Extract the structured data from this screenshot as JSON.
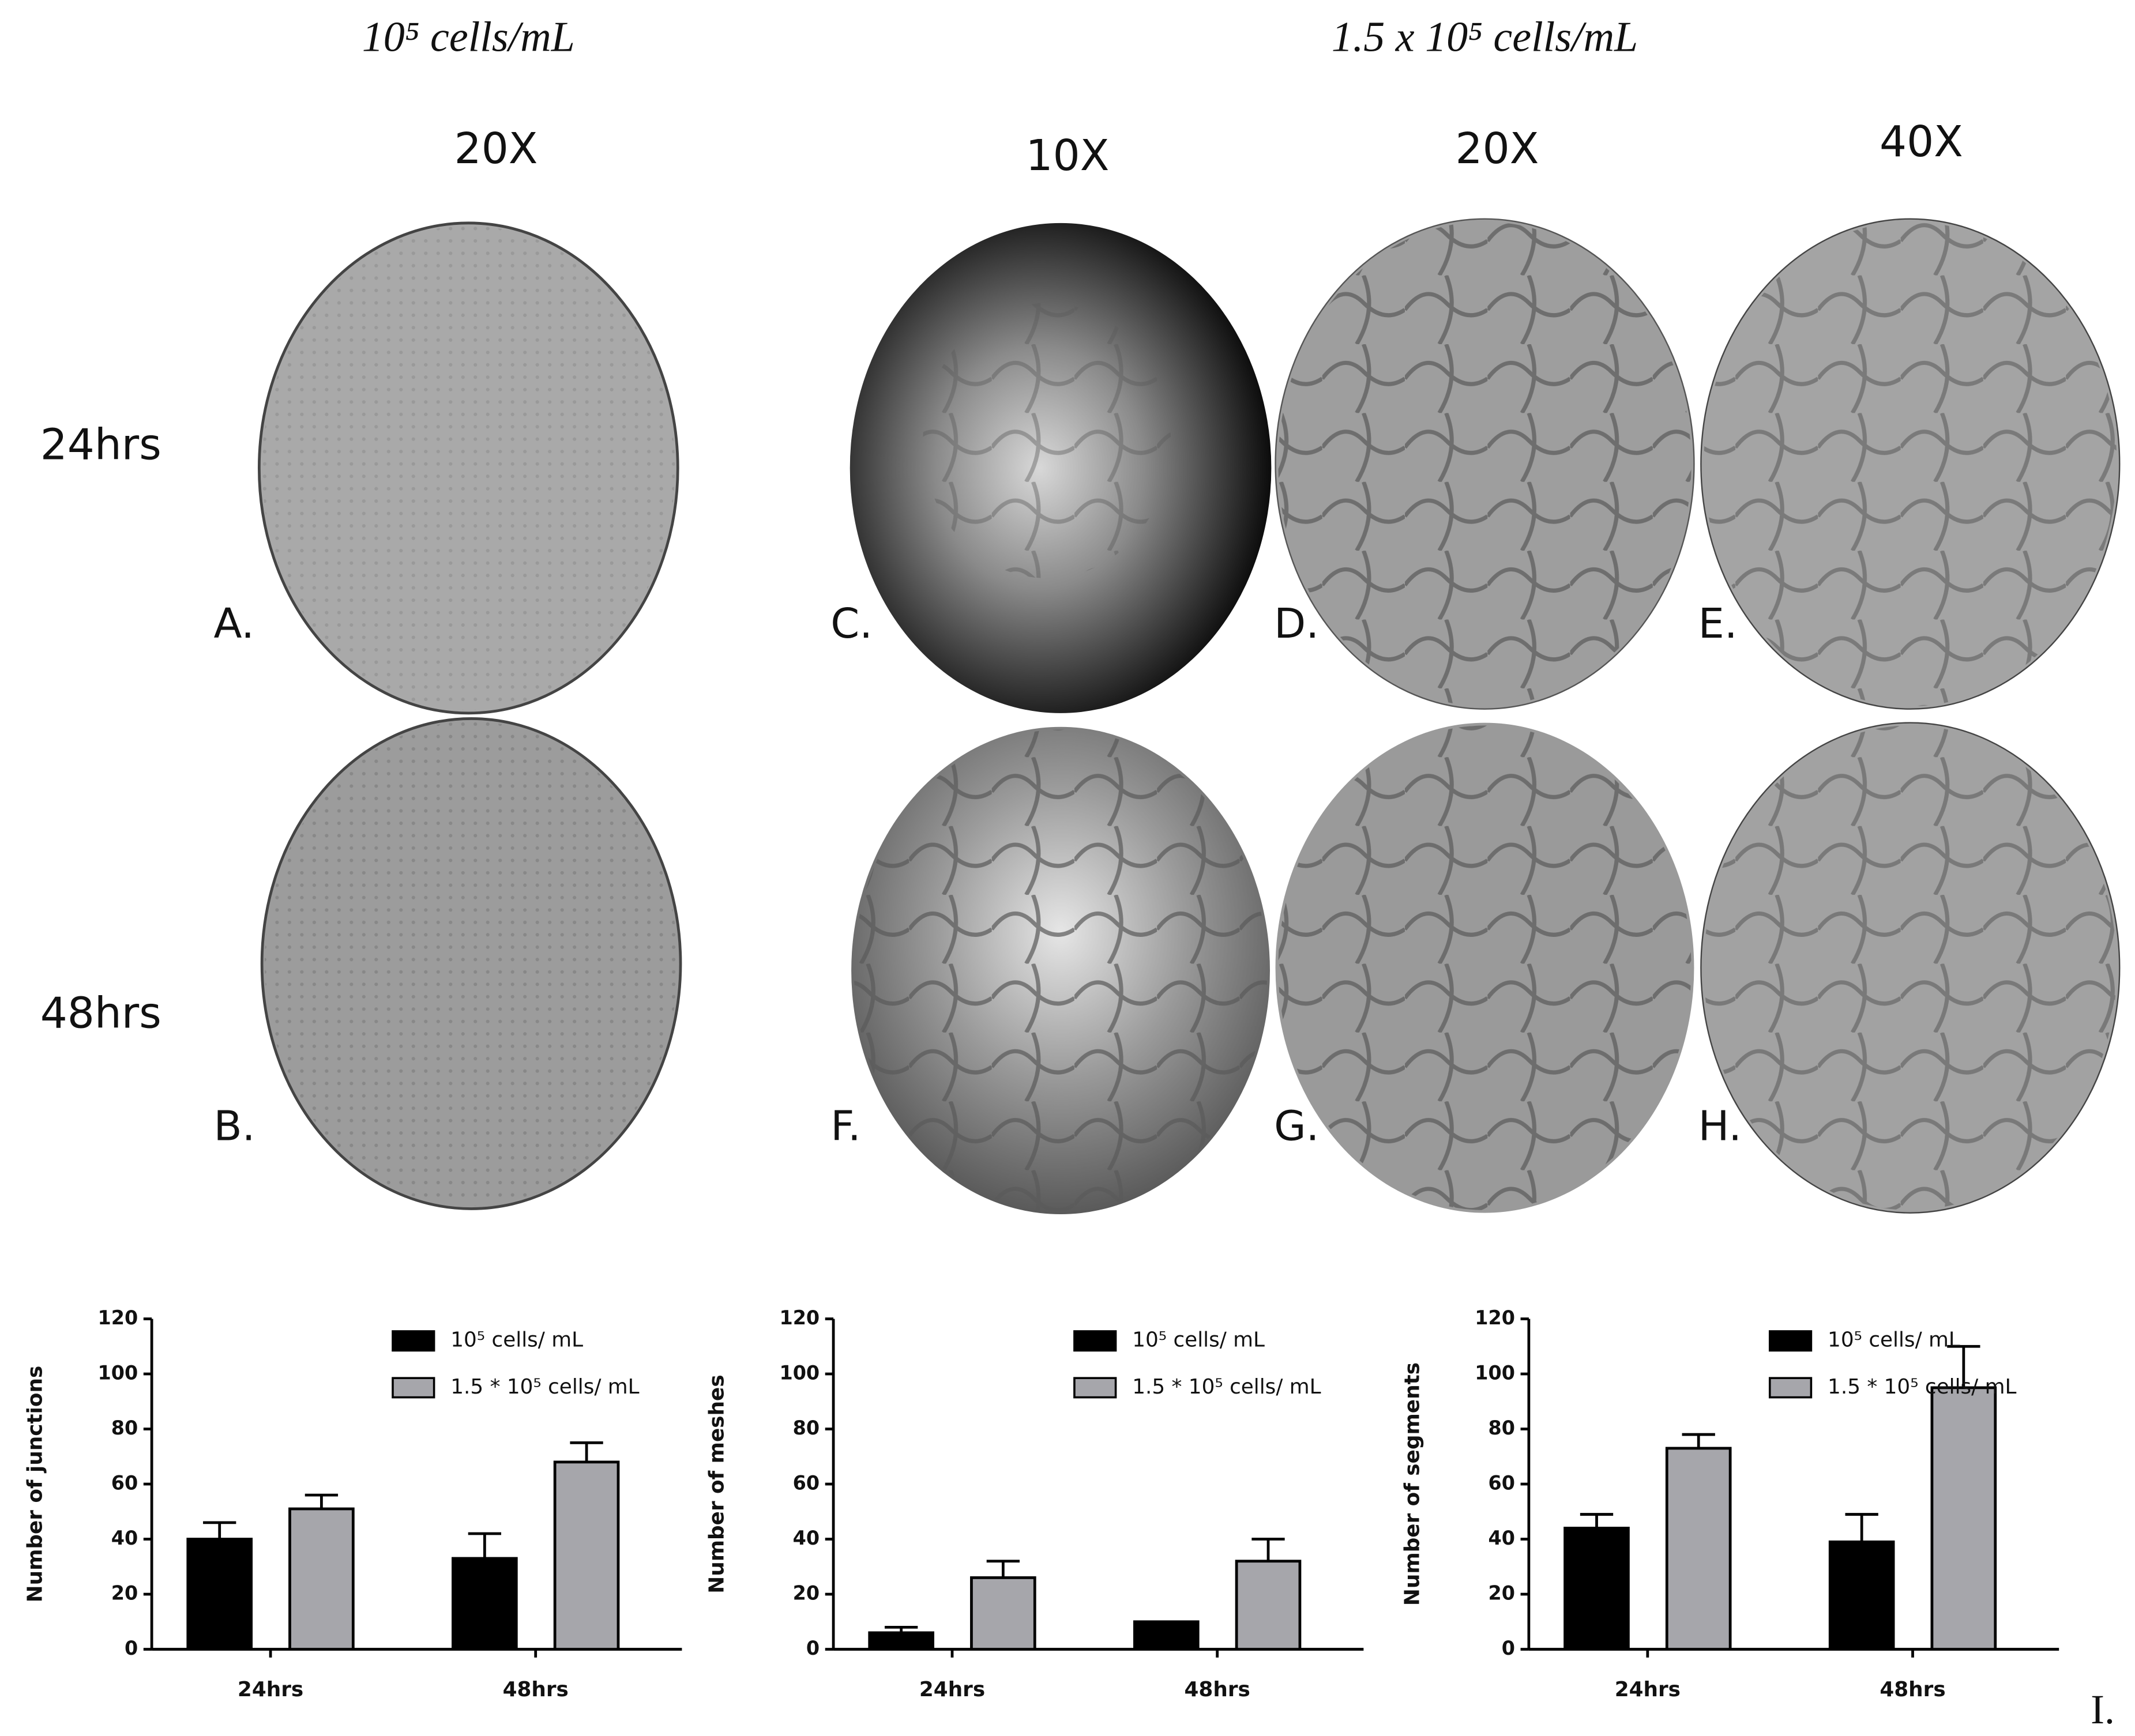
{
  "figure": {
    "headers": [
      "10⁵ cells/mL",
      "1.5 x 10⁵ cells/mL"
    ],
    "magnifications": [
      "20X",
      "10X",
      "20X",
      "40X"
    ],
    "rows": [
      "24hrs",
      "48hrs"
    ],
    "panels": [
      "A.",
      "B.",
      "C.",
      "D.",
      "E.",
      "F.",
      "G.",
      "H."
    ],
    "chart_panel": "I."
  },
  "chart_data": [
    {
      "type": "bar",
      "y_label": "Number of junctions",
      "categories": [
        "24hrs",
        "48hrs"
      ],
      "series": [
        {
          "name": "10⁵ cells/ mL",
          "color": "#000000",
          "values": [
            40,
            33
          ],
          "errors": [
            6,
            9
          ]
        },
        {
          "name": "1.5 * 10⁵ cells/ mL",
          "color": "#a6a6ab",
          "values": [
            51,
            68
          ],
          "errors": [
            5,
            7
          ]
        }
      ],
      "ylim": [
        0,
        120
      ],
      "yticks": [
        0,
        20,
        40,
        60,
        80,
        100,
        120
      ],
      "legend": "top-right"
    },
    {
      "type": "bar",
      "y_label": "Number of meshes",
      "categories": [
        "24hrs",
        "48hrs"
      ],
      "series": [
        {
          "name": "10⁵ cells/ mL",
          "color": "#000000",
          "values": [
            6,
            10
          ],
          "errors": [
            2,
            null
          ]
        },
        {
          "name": "1.5 * 10⁵ cells/ mL",
          "color": "#a6a6ab",
          "values": [
            26,
            32
          ],
          "errors": [
            6,
            8
          ]
        }
      ],
      "ylim": [
        0,
        120
      ],
      "yticks": [
        0,
        20,
        40,
        60,
        80,
        100,
        120
      ],
      "legend": "top-right"
    },
    {
      "type": "bar",
      "y_label": "Number of segments",
      "categories": [
        "24hrs",
        "48hrs"
      ],
      "series": [
        {
          "name": "10⁵ cells/ mL",
          "color": "#000000",
          "values": [
            44,
            39
          ],
          "errors": [
            5,
            10
          ]
        },
        {
          "name": "1.5 * 10⁵ cells/ mL",
          "color": "#a6a6ab",
          "values": [
            73,
            95
          ],
          "errors": [
            5,
            15
          ]
        }
      ],
      "ylim": [
        0,
        120
      ],
      "yticks": [
        0,
        20,
        40,
        60,
        80,
        100,
        120
      ],
      "legend": "top-right"
    }
  ]
}
